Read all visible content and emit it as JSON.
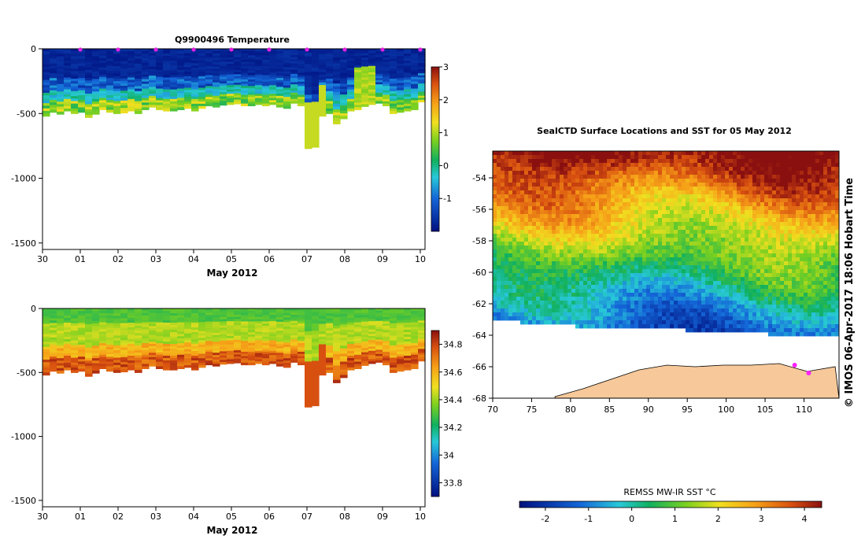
{
  "chart_data": [
    {
      "type": "heatmap",
      "title": "Q9900496  Temperature",
      "xlabel": "May 2012",
      "x_ticks": [
        "30",
        "01",
        "02",
        "03",
        "04",
        "05",
        "06",
        "07",
        "08",
        "09",
        "10"
      ],
      "y_ticks": [
        0,
        -500,
        -1000,
        -1500
      ],
      "ylim": [
        -1550,
        0
      ],
      "colorbar": {
        "ticks": [
          3,
          2,
          1,
          0,
          -1
        ],
        "range": [
          -2,
          3
        ]
      },
      "profile_markers": [
        "01",
        "02",
        "03",
        "04",
        "05",
        "06",
        "07",
        "08",
        "09",
        "10"
      ],
      "profile_bottoms_m": [
        520,
        490,
        505,
        480,
        500,
        490,
        530,
        505,
        470,
        490,
        500,
        495,
        480,
        500,
        470,
        450,
        470,
        480,
        480,
        470,
        460,
        480,
        460,
        440,
        450,
        435,
        430,
        425,
        440,
        440,
        430,
        440,
        430,
        450,
        460,
        420,
        440,
        770,
        760,
        520,
        500,
        580,
        540,
        480,
        470,
        445,
        430,
        420,
        440,
        500,
        490,
        480,
        470,
        410
      ],
      "warm_layer_m": [
        [
          340,
          440
        ],
        [
          380,
          420
        ],
        [
          400,
          460
        ]
      ]
    },
    {
      "type": "heatmap",
      "title": "",
      "xlabel": "May 2012",
      "x_ticks": [
        "30",
        "01",
        "02",
        "03",
        "04",
        "05",
        "06",
        "07",
        "08",
        "09",
        "10"
      ],
      "y_ticks": [
        0,
        -500,
        -1000,
        -1500
      ],
      "ylim": [
        -1550,
        0
      ],
      "colorbar": {
        "ticks": [
          34.8,
          34.6,
          34.4,
          34.2,
          34,
          33.8
        ],
        "range": [
          33.7,
          34.9
        ]
      }
    },
    {
      "type": "heatmap",
      "title": "SealCTD Surface Locations and SST for 05 May 2012",
      "x_ticks": [
        70,
        75,
        80,
        85,
        90,
        95,
        100,
        105,
        110
      ],
      "y_ticks": [
        -54,
        -56,
        -58,
        -60,
        -62,
        -64,
        -66,
        -68
      ],
      "xlim": [
        70,
        114.5
      ],
      "ylim": [
        -68,
        -52.3
      ],
      "colorbar": {
        "label": "REMSS MW-IR SST °C",
        "ticks": [
          -2,
          -1,
          0,
          1,
          2,
          3,
          4
        ],
        "range": [
          -2.6,
          4.4
        ]
      },
      "ice_edge_lat": [
        -63.0,
        -63.1,
        -63.4,
        -63.3,
        -63.6,
        -63.7,
        -63.9,
        -64.0
      ],
      "coast_lat": [
        -67.9,
        -67.4,
        -66.8,
        -66.2,
        -65.9,
        -66.0,
        -65.9,
        -65.9,
        -65.8,
        -66.3,
        -66.0
      ]
    }
  ],
  "stamp": "© IMOS 06-Apr-2017 18:06 Hobart Time"
}
